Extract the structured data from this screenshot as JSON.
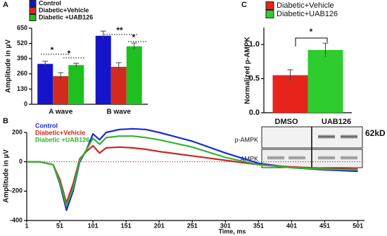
{
  "chart_data": [
    {
      "panel": "A",
      "type": "bar",
      "ylabel": "Amplitude in µV",
      "legend": "top-left",
      "categories": [
        "A wave",
        "B wave"
      ],
      "series": [
        {
          "name": "Control",
          "color": "#1414c8",
          "values": [
            345,
            585
          ],
          "errors": [
            22,
            40
          ]
        },
        {
          "name": "Diabetic+Vehicle",
          "color": "#d42a1e",
          "values": [
            240,
            320
          ],
          "errors": [
            30,
            35
          ]
        },
        {
          "name": "Diabetic +UAB126",
          "color": "#1ec01e",
          "values": [
            335,
            495
          ],
          "errors": [
            15,
            28
          ]
        }
      ],
      "ylim": [
        0,
        650
      ],
      "yticks": [
        0,
        130,
        260,
        390,
        520,
        650
      ],
      "annotations": [
        "*",
        "*",
        "**",
        "*"
      ]
    },
    {
      "panel": "B",
      "type": "line",
      "xlabel": "Time, ms",
      "ylabel": "Amplitude in µV",
      "legend": "top-left",
      "x": [
        1,
        21,
        41,
        51,
        61,
        71,
        81,
        91,
        101,
        111,
        121,
        141,
        161,
        181,
        201,
        251,
        301,
        351,
        401,
        451,
        501
      ],
      "series": [
        {
          "name": "Control",
          "color": "#1e28d2",
          "values": [
            0,
            0,
            -20,
            -150,
            -330,
            -200,
            0,
            80,
            190,
            150,
            200,
            220,
            225,
            220,
            200,
            140,
            60,
            -10,
            -40,
            -55,
            -65
          ]
        },
        {
          "name": "Diabetic+Vehicle",
          "color": "#c8281e",
          "values": [
            0,
            0,
            -20,
            -120,
            -280,
            -150,
            20,
            70,
            110,
            60,
            95,
            100,
            95,
            85,
            70,
            40,
            10,
            -20,
            -35,
            -45,
            -50
          ]
        },
        {
          "name": "Diabetic +UAB126",
          "color": "#32b432",
          "values": [
            0,
            0,
            -20,
            -140,
            -300,
            -180,
            10,
            80,
            160,
            120,
            165,
            175,
            175,
            165,
            150,
            100,
            30,
            -20,
            -40,
            -50,
            -55
          ]
        }
      ],
      "xlim": [
        1,
        511
      ],
      "xticks": [
        1,
        51,
        101,
        151,
        201,
        251,
        301,
        351,
        401,
        451,
        501
      ],
      "ylim": [
        -400,
        200
      ],
      "yticks": [
        -400,
        -200,
        0,
        200
      ]
    },
    {
      "panel": "C",
      "type": "bar",
      "ylabel": "Normalized p-AMPK",
      "legend": "top-left",
      "series": [
        {
          "name": "Diabetic+Vehicle",
          "color": "#e8231c",
          "values": [
            0.55
          ],
          "errors": [
            0.08
          ]
        },
        {
          "name": "Diabetic+UAB126",
          "color": "#2ecc2e",
          "values": [
            0.92
          ],
          "errors": [
            0.1
          ]
        }
      ],
      "ylim": [
        0,
        1.25
      ],
      "yticks": [
        {
          "value": 0,
          "label": "0.0"
        },
        {
          "value": 0.5,
          "label": "0.5"
        },
        {
          "value": 1,
          "label": "1.0"
        }
      ],
      "annotations": [
        "*"
      ]
    }
  ],
  "blot": {
    "columns": [
      "DMSO",
      "UAB126"
    ],
    "rows": [
      "p-AMPK",
      "AMPK"
    ],
    "size": "62kD"
  }
}
